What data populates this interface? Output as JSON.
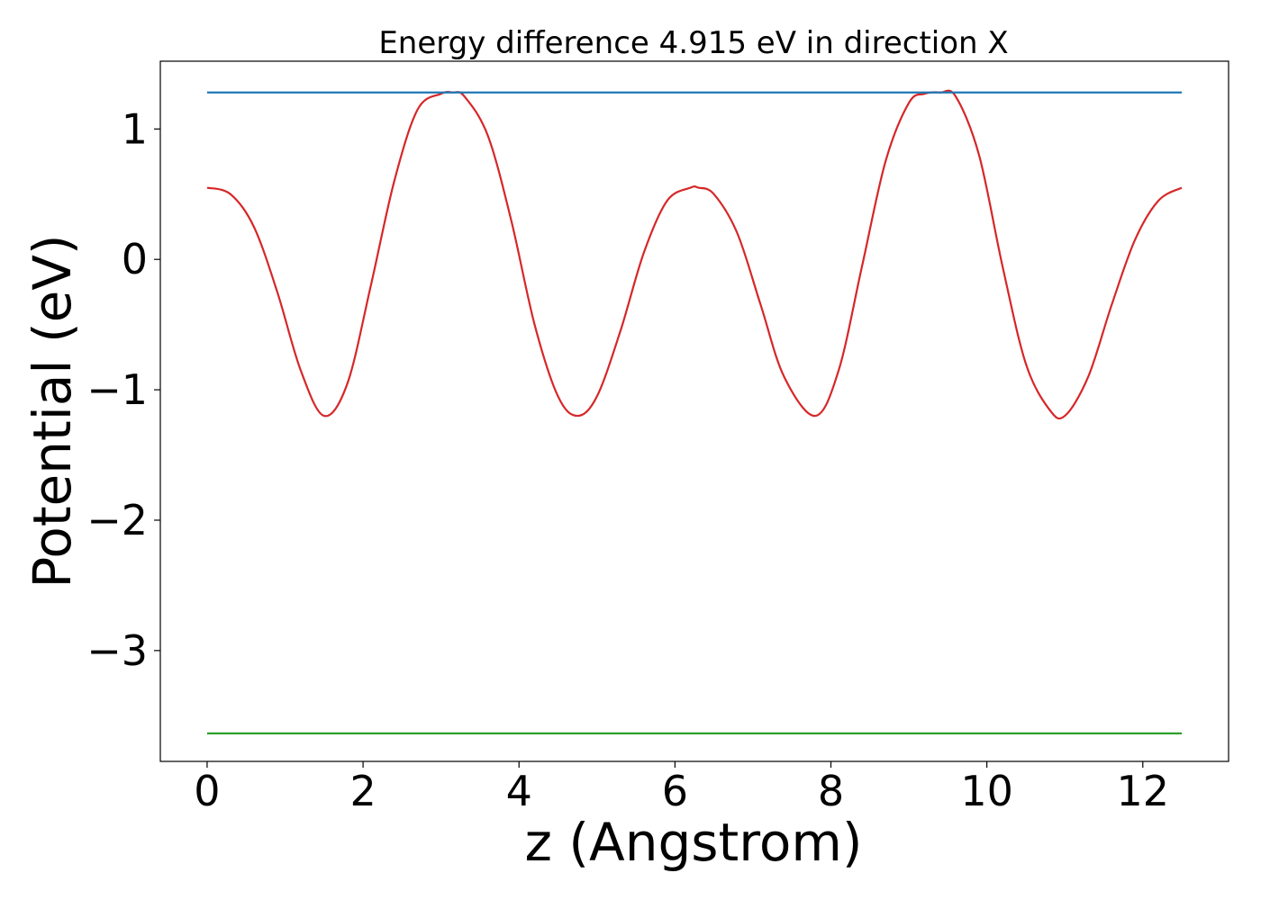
{
  "chart_data": {
    "type": "line",
    "title": "Energy difference 4.915 eV in direction X",
    "xlabel": "z (Angstrom)",
    "ylabel": "Potential (eV)",
    "xlim": [
      -0.6,
      13.1
    ],
    "ylim": [
      -3.85,
      1.52
    ],
    "xticks": [
      0,
      2,
      4,
      6,
      8,
      10,
      12
    ],
    "xtick_labels": [
      "0",
      "2",
      "4",
      "6",
      "8",
      "10",
      "12"
    ],
    "yticks": [
      1,
      0,
      -1,
      -2,
      -3
    ],
    "ytick_labels": [
      "1",
      "0",
      "−1",
      "−2",
      "−3"
    ],
    "grid": false,
    "legend": "none",
    "series": [
      {
        "color": "#d62728",
        "x": [
          0.0,
          0.3,
          0.6,
          0.9,
          1.2,
          1.5,
          1.8,
          2.1,
          2.4,
          2.7,
          3.0,
          3.15,
          3.3,
          3.6,
          3.9,
          4.2,
          4.5,
          4.75,
          5.0,
          5.3,
          5.6,
          5.9,
          6.2,
          6.3,
          6.5,
          6.8,
          7.1,
          7.4,
          7.8,
          8.1,
          8.4,
          8.7,
          9.0,
          9.2,
          9.4,
          9.6,
          9.9,
          10.2,
          10.5,
          10.8,
          11.0,
          11.3,
          11.6,
          11.9,
          12.2,
          12.5
        ],
        "y": [
          0.55,
          0.5,
          0.25,
          -0.25,
          -0.85,
          -1.2,
          -0.95,
          -0.2,
          0.6,
          1.15,
          1.27,
          1.28,
          1.25,
          0.95,
          0.3,
          -0.5,
          -1.05,
          -1.2,
          -1.05,
          -0.55,
          0.05,
          0.45,
          0.55,
          0.55,
          0.5,
          0.2,
          -0.35,
          -0.9,
          -1.2,
          -0.85,
          -0.05,
          0.75,
          1.2,
          1.27,
          1.28,
          1.25,
          0.8,
          -0.05,
          -0.8,
          -1.15,
          -1.2,
          -0.9,
          -0.35,
          0.15,
          0.45,
          0.55
        ]
      },
      {
        "color": "#1f77b4",
        "x": [
          0,
          12.5
        ],
        "y": [
          1.28,
          1.28
        ]
      },
      {
        "color": "#2ca02c",
        "x": [
          0,
          12.5
        ],
        "y": [
          -3.635,
          -3.635
        ]
      }
    ]
  }
}
